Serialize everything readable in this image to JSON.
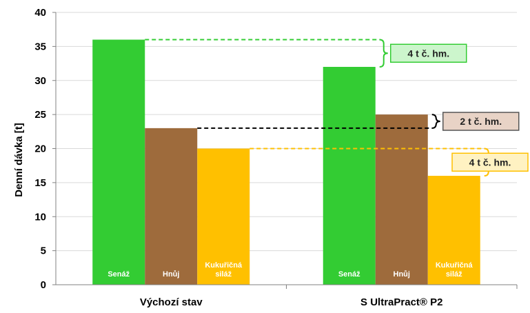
{
  "chart_data": {
    "type": "bar",
    "ylabel": "Denní dávka [t]",
    "ylim": [
      0,
      40
    ],
    "yticks": [
      0,
      5,
      10,
      15,
      20,
      25,
      30,
      35,
      40
    ],
    "grid": "horizontal",
    "categories": [
      "Výchozí stav",
      "S UltraPract® P2"
    ],
    "series": [
      {
        "name": "Senáž",
        "color": "#33CC33",
        "values": [
          36,
          32
        ],
        "labels": [
          "Senáž",
          "Senáž"
        ]
      },
      {
        "name": "Hnůj",
        "color": "#9E6B3C",
        "values": [
          23,
          25
        ],
        "labels": [
          "Hnůj",
          "Hnůj"
        ]
      },
      {
        "name": "Kukuřičná siláž",
        "color": "#FFC000",
        "values": [
          20,
          16
        ],
        "labels": [
          "Kukuřičná\nsiláž",
          "Kukuřičná\nsiláž"
        ]
      }
    ],
    "annotations": [
      {
        "series": 0,
        "text": "4 t č. hm.",
        "line_color": "#33CC33",
        "box_fill": "#CCF5CC",
        "box_stroke": "#33CC33"
      },
      {
        "series": 1,
        "text": "2 t č. hm.",
        "line_color": "#000000",
        "box_fill": "#E8D3C6",
        "box_stroke": "#555555"
      },
      {
        "series": 2,
        "text": "4 t č. hm.",
        "line_color": "#FFC000",
        "box_fill": "#FFF2C2",
        "box_stroke": "#FFC000"
      }
    ]
  }
}
